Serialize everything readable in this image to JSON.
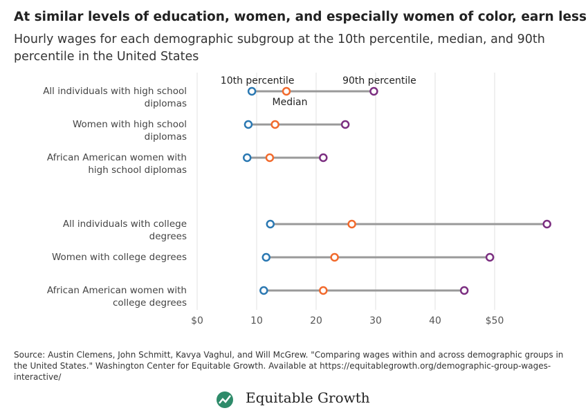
{
  "title": "At similar levels of education, women, and especially women of color, earn less",
  "subtitle": "Hourly wages for each demographic subgroup at the 10th percentile, median, and 90th percentile in the United States",
  "chart_data": {
    "type": "dot-range",
    "categories": [
      "All individuals with high school diplomas",
      "Women with high school diplomas",
      "African American women with high school diplomas",
      null,
      "All individuals with college degrees",
      "Women with college degrees",
      "African American women with college degrees"
    ],
    "series": [
      {
        "name": "10th percentile",
        "color": "#2a78b2",
        "values": [
          9.2,
          8.6,
          8.4,
          null,
          12.3,
          11.6,
          11.2
        ]
      },
      {
        "name": "Median",
        "color": "#f26a2c",
        "values": [
          15.0,
          13.1,
          12.2,
          null,
          26.0,
          23.1,
          21.2
        ]
      },
      {
        "name": "90th percentile",
        "color": "#7b2e80",
        "values": [
          29.7,
          24.9,
          21.2,
          null,
          58.8,
          49.2,
          44.9
        ]
      }
    ],
    "xlim": [
      0,
      60
    ],
    "xticks": [
      {
        "value": 0,
        "label": "$0"
      },
      10,
      20,
      30,
      40,
      {
        "value": 50,
        "label": "$50"
      }
    ],
    "grid": true,
    "range_line_color": "#999999"
  },
  "source": "Source: Austin Clemens, John Schmitt, Kavya Vaghul, and Will McGrew. \"Comparing wages within and across demographic groups in the United States.\" Washington Center for Equitable Growth. Available at https://equitablegrowth.org/demographic-group-wages-interactive/",
  "logo": "Equitable Growth"
}
